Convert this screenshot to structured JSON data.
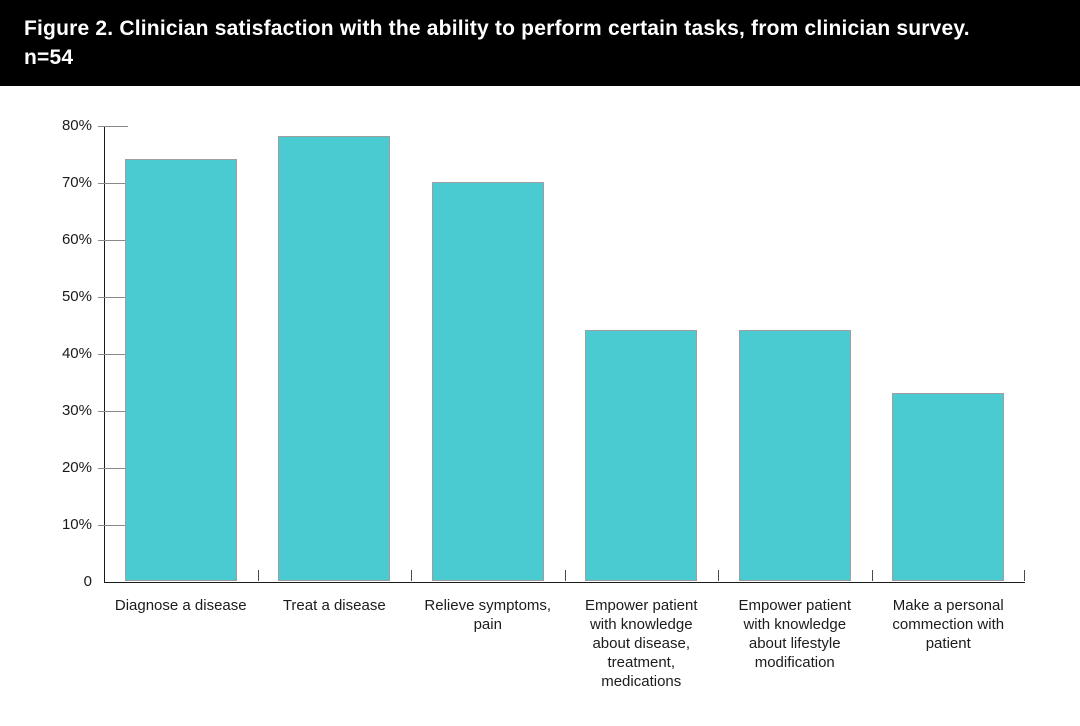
{
  "chart_data": {
    "type": "bar",
    "title": "Figure 2. Clinician satisfaction with the ability to perform certain tasks, from clinician survey. n=54",
    "categories": [
      "Diagnose a disease",
      "Treat a disease",
      "Relieve symptoms, pain",
      "Empower patient with knowledge about disease, treatment, medications",
      "Empower patient with knowledge about lifestyle modification",
      "Make a personal commection with patient"
    ],
    "values": [
      74,
      78,
      70,
      44,
      44,
      33
    ],
    "value_unit": "percent",
    "xlabel": "",
    "ylabel": "",
    "ylim": [
      0,
      80
    ],
    "ytick_step": 10,
    "ytick_labels": [
      "0",
      "10%",
      "20%",
      "30%",
      "40%",
      "50%",
      "60%",
      "70%",
      "80%"
    ],
    "grid": false,
    "legend": false,
    "colors": {
      "bar_fill": "#4ACBD1",
      "bar_border": "#9e9e9e",
      "axis": "#1a1a1a",
      "y_tick": "#8a8a8a",
      "x_tick": "#4a4a4a",
      "title_band_background": "#000000",
      "title_text": "#ffffff"
    }
  }
}
